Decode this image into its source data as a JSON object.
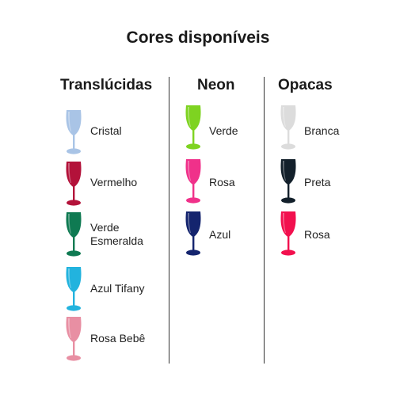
{
  "title": "Cores disponíveis",
  "columns": [
    {
      "heading": "Translúcidas",
      "items": [
        {
          "label": "Cristal",
          "color": "#a9c4e6"
        },
        {
          "label": "Vermelho",
          "color": "#b3123a"
        },
        {
          "label": "Verde Esmeralda",
          "color": "#0f7a52"
        },
        {
          "label": "Azul Tifany",
          "color": "#22b3de"
        },
        {
          "label": "Rosa Bebê",
          "color": "#e88fa3"
        }
      ]
    },
    {
      "heading": "Neon",
      "items": [
        {
          "label": "Verde",
          "color": "#7ed321"
        },
        {
          "label": "Rosa",
          "color": "#f0318a"
        },
        {
          "label": "Azul",
          "color": "#14246e"
        }
      ]
    },
    {
      "heading": "Opacas",
      "items": [
        {
          "label": "Branca",
          "color": "#dcdcdc"
        },
        {
          "label": "Preta",
          "color": "#13202b"
        },
        {
          "label": "Rosa",
          "color": "#f2104e"
        }
      ]
    }
  ]
}
